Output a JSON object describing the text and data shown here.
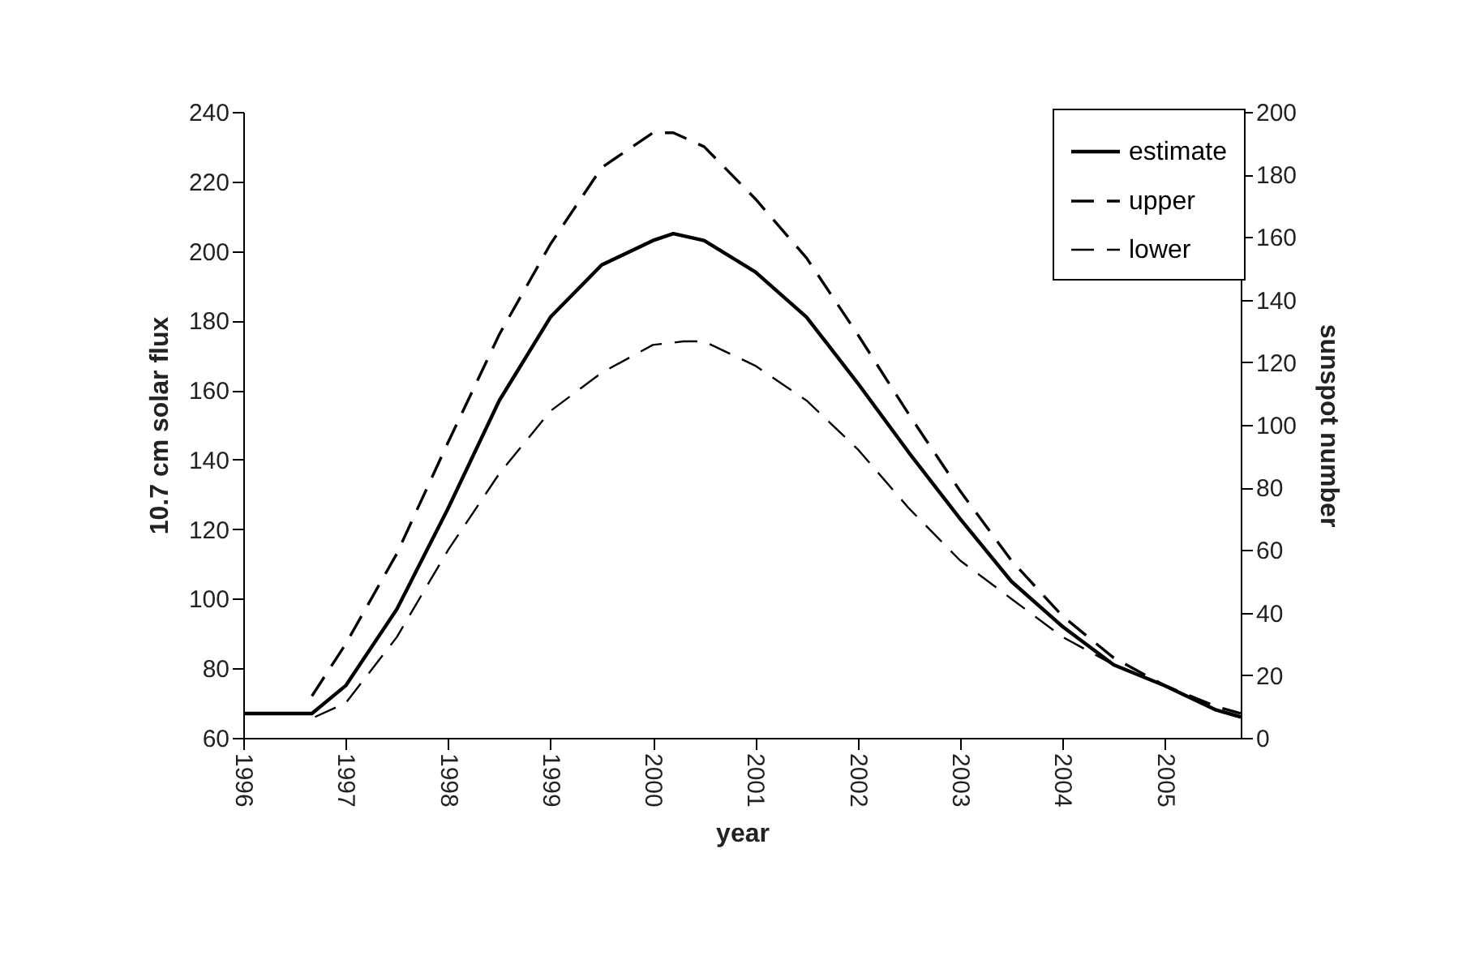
{
  "chart_data": {
    "type": "line",
    "xlabel": "year",
    "ylabel": "10.7 cm solar flux",
    "y2label": "sunspot number",
    "xlim": [
      1996,
      2005.74
    ],
    "xticks": [
      1996,
      1997,
      1998,
      1999,
      2000,
      2001,
      2002,
      2003,
      2004,
      2005
    ],
    "ylim": [
      60,
      240
    ],
    "yticks": [
      60,
      80,
      100,
      120,
      140,
      160,
      180,
      200,
      220,
      240
    ],
    "y2lim": [
      0,
      200
    ],
    "y2ticks": [
      0,
      20,
      40,
      60,
      80,
      100,
      120,
      140,
      160,
      180,
      200
    ],
    "grid": false,
    "legend": "top right",
    "series": [
      {
        "name": "estimate",
        "color": "#000000",
        "line_style": "solid",
        "x": [
          1996,
          1996.67,
          1997,
          1997.5,
          1998,
          1998.5,
          1999,
          1999.5,
          2000,
          2000.2,
          2000.5,
          2001,
          2001.5,
          2002,
          2002.5,
          2003,
          2003.5,
          2004,
          2004.5,
          2005,
          2005.5,
          2005.74
        ],
        "values": [
          67,
          67,
          75,
          97,
          126,
          157,
          181,
          196,
          203,
          205,
          203,
          194,
          181,
          162,
          142,
          123,
          105,
          92,
          81,
          75,
          68,
          66
        ]
      },
      {
        "name": "upper",
        "color": "#000000",
        "line_style": "dashed",
        "x": [
          1996.67,
          1997,
          1997.5,
          1998,
          1998.5,
          1999,
          1999.5,
          2000,
          2000.2,
          2000.5,
          2001,
          2001.5,
          2002,
          2002.5,
          2003,
          2003.5,
          2004,
          2004.5,
          2005,
          2005.5,
          2005.74
        ],
        "values": [
          72,
          87,
          113,
          145,
          176,
          202,
          224,
          234,
          234,
          230,
          215,
          198,
          176,
          153,
          131,
          111,
          95,
          83,
          75,
          69,
          67
        ]
      },
      {
        "name": "lower",
        "color": "#000000",
        "line_style": "dashed",
        "x": [
          1996.7,
          1997,
          1997.5,
          1998,
          1998.5,
          1999,
          1999.5,
          2000,
          2000.3,
          2000.5,
          2001,
          2001.5,
          2002,
          2002.5,
          2003,
          2003.5,
          2004,
          2004.5,
          2005,
          2005.5,
          2005.74
        ],
        "values": [
          66,
          70,
          89,
          114,
          136,
          154,
          165,
          173,
          174,
          174,
          167,
          157,
          143,
          126,
          111,
          100,
          89,
          81,
          75,
          68,
          66
        ]
      }
    ]
  }
}
